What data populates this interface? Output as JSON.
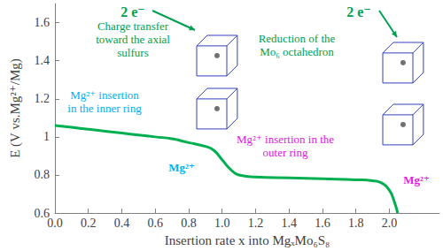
{
  "chart_data": {
    "type": "line",
    "x_label": "Insertion rate x into MgₓMo₆S₈",
    "y_label": "E (V vs.Mg²⁺/Mg)",
    "x": [
      0,
      0.1,
      0.2,
      0.3,
      0.4,
      0.5,
      0.6,
      0.7,
      0.8,
      0.9,
      0.95,
      1.0,
      1.05,
      1.1,
      1.2,
      1.4,
      1.6,
      1.8,
      1.9,
      1.95,
      2.0,
      2.03,
      2.05
    ],
    "values": [
      1.06,
      1.05,
      1.04,
      1.03,
      1.02,
      1.01,
      1.0,
      0.99,
      0.97,
      0.95,
      0.93,
      0.88,
      0.83,
      0.8,
      0.79,
      0.785,
      0.78,
      0.775,
      0.77,
      0.76,
      0.72,
      0.66,
      0.6
    ],
    "color": "#00b050",
    "xlim": [
      0,
      2.3
    ],
    "xticks": [
      {
        "value": 0,
        "label": "0.0"
      },
      0.2,
      0.4,
      0.6,
      0.8,
      {
        "value": 1,
        "label": "1.0"
      },
      1.2,
      1.4,
      1.6,
      1.8,
      {
        "value": 2,
        "label": "2.0"
      }
    ],
    "ylim": [
      0.6,
      1.7
    ],
    "yticks": [
      0.6,
      0.8,
      1,
      1.2,
      1.4,
      1.6
    ],
    "grid": false,
    "annotations": [
      {
        "text": "2 e⁻",
        "color": "#00a050"
      },
      {
        "text": "Charge transfer\ntoward the axial\nsulfurs",
        "color": "#00a050"
      },
      {
        "text": "Mg²⁺ insertion\nin the inner ring",
        "color": "#00b0f0"
      },
      {
        "text": "Mg²⁺",
        "color": "#00b0f0"
      },
      {
        "text": "2 e⁻",
        "color": "#00a050"
      },
      {
        "text": "Reduction of the\nMo₆ octahedron",
        "color": "#00a050"
      },
      {
        "text": "Mg²⁺ insertion in the\nouter ring",
        "color": "#e020e0"
      },
      {
        "text": "Mg²⁺",
        "color": "#e020e0"
      }
    ]
  }
}
